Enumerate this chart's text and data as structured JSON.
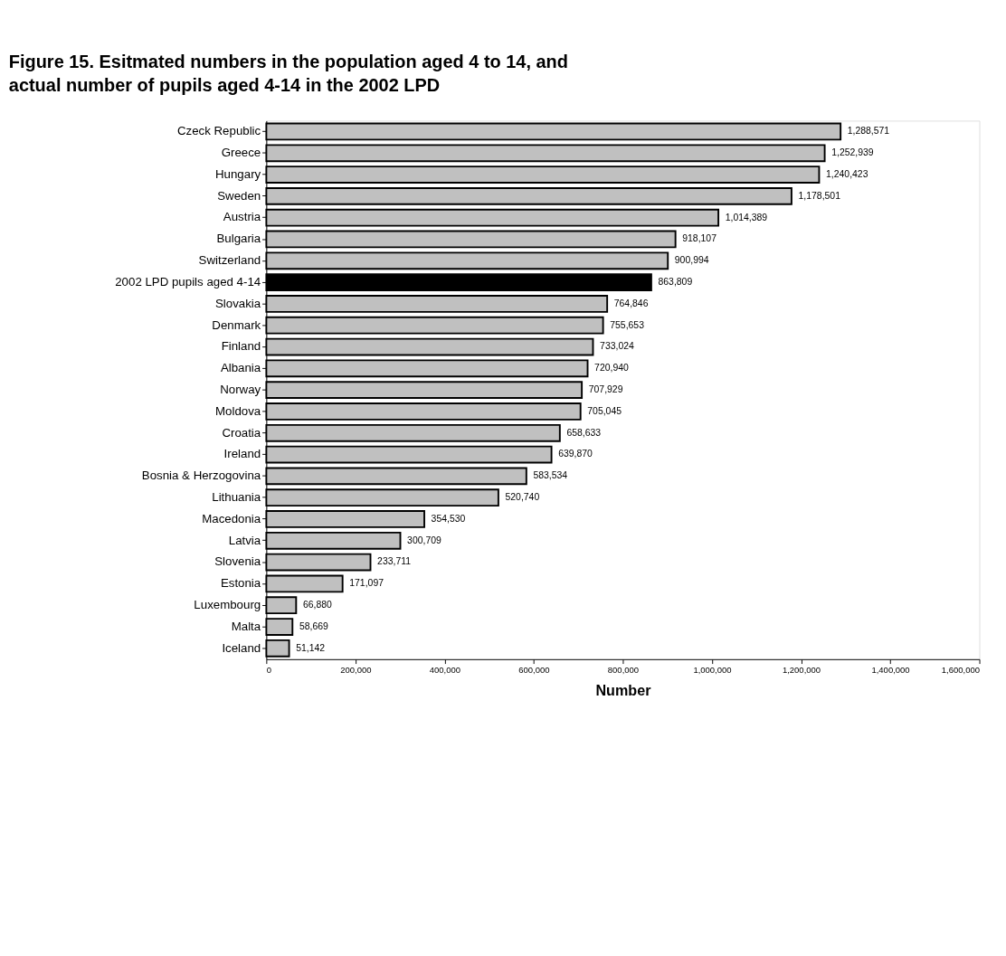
{
  "chart_data": {
    "type": "bar",
    "orientation": "horizontal",
    "title": "Figure 15. Esitmated numbers in the population aged 4 to 14, and actual number of pupils aged 4-14 in the 2002 LPD",
    "xlabel": "Number",
    "categories": [
      "Czeck Republic",
      "Greece",
      "Hungary",
      "Sweden",
      "Austria",
      "Bulgaria",
      "Switzerland",
      "2002 LPD pupils aged 4-14",
      "Slovakia",
      "Denmark",
      "Finland",
      "Albania",
      "Norway",
      "Moldova",
      "Croatia",
      "Ireland",
      "Bosnia & Herzogovina",
      "Lithuania",
      "Macedonia",
      "Latvia",
      "Slovenia",
      "Estonia",
      "Luxembourg",
      "Malta",
      "Iceland"
    ],
    "values": [
      1288571,
      1252939,
      1240423,
      1178501,
      1014389,
      918107,
      900994,
      863809,
      764846,
      755653,
      733024,
      720940,
      707929,
      705045,
      658633,
      639870,
      583534,
      520740,
      354530,
      300709,
      233711,
      171097,
      66880,
      58669,
      51142
    ],
    "value_labels": [
      "1,288,571",
      "1,252,939",
      "1,240,423",
      "1,178,501",
      "1,014,389",
      "918,107",
      "900,994",
      "863,809",
      "764,846",
      "755,653",
      "733,024",
      "720,940",
      "707,929",
      "705,045",
      "658,633",
      "639,870",
      "583,534",
      "520,740",
      "354,530",
      "300,709",
      "233,711",
      "171,097",
      "66,880",
      "58,669",
      "51,142"
    ],
    "colors": [
      "#c0c0c0",
      "#c0c0c0",
      "#c0c0c0",
      "#c0c0c0",
      "#c0c0c0",
      "#c0c0c0",
      "#c0c0c0",
      "#000000",
      "#c0c0c0",
      "#c0c0c0",
      "#c0c0c0",
      "#c0c0c0",
      "#c0c0c0",
      "#c0c0c0",
      "#c0c0c0",
      "#c0c0c0",
      "#c0c0c0",
      "#c0c0c0",
      "#c0c0c0",
      "#c0c0c0",
      "#c0c0c0",
      "#c0c0c0",
      "#c0c0c0",
      "#c0c0c0",
      "#c0c0c0"
    ],
    "xlim": [
      0,
      1600000
    ],
    "xticks": [
      0,
      {
        "value": 200000,
        "label": "200,000"
      },
      {
        "value": 400000,
        "label": "400,000"
      },
      {
        "value": 600000,
        "label": "600,000"
      },
      {
        "value": 800000,
        "label": "800,000"
      },
      {
        "value": 1000000,
        "label": "1,000,000"
      },
      {
        "value": 1200000,
        "label": "1,200,000"
      },
      {
        "value": 1400000,
        "label": "1,400,000"
      },
      {
        "value": 1600000,
        "label": "1,600,000"
      }
    ],
    "grid": false
  }
}
